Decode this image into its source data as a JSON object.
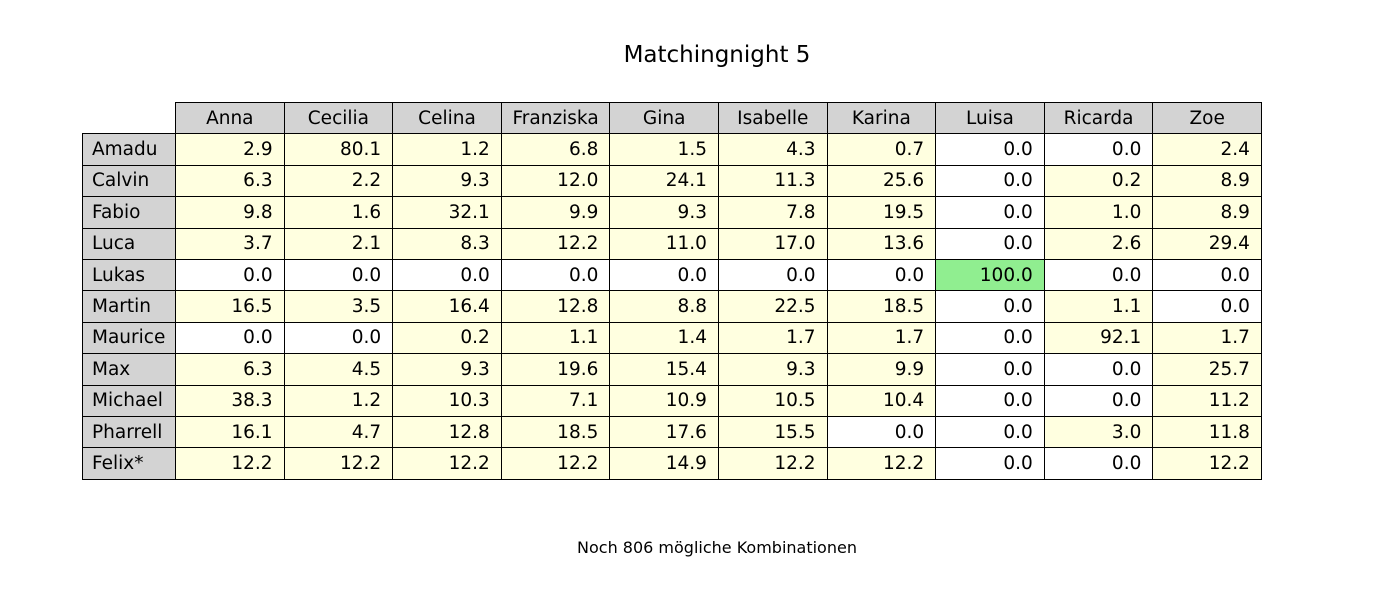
{
  "title": "Matchingnight 5",
  "footer": "Noch 806 mögliche Kombinationen",
  "colors": {
    "header_bg": "#d3d3d3",
    "positive_bg": "#ffffe0",
    "zero_bg": "#ffffff",
    "certain_bg": "#90ee90",
    "border": "#000000"
  },
  "chart_data": {
    "type": "table",
    "title": "Matchingnight 5",
    "columns": [
      "Anna",
      "Cecilia",
      "Celina",
      "Franziska",
      "Gina",
      "Isabelle",
      "Karina",
      "Luisa",
      "Ricarda",
      "Zoe"
    ],
    "rows": [
      {
        "name": "Amadu",
        "values": [
          "2.9",
          "80.1",
          "1.2",
          "6.8",
          "1.5",
          "4.3",
          "0.7",
          "0.0",
          "0.0",
          "2.4"
        ]
      },
      {
        "name": "Calvin",
        "values": [
          "6.3",
          "2.2",
          "9.3",
          "12.0",
          "24.1",
          "11.3",
          "25.6",
          "0.0",
          "0.2",
          "8.9"
        ]
      },
      {
        "name": "Fabio",
        "values": [
          "9.8",
          "1.6",
          "32.1",
          "9.9",
          "9.3",
          "7.8",
          "19.5",
          "0.0",
          "1.0",
          "8.9"
        ]
      },
      {
        "name": "Luca",
        "values": [
          "3.7",
          "2.1",
          "8.3",
          "12.2",
          "11.0",
          "17.0",
          "13.6",
          "0.0",
          "2.6",
          "29.4"
        ]
      },
      {
        "name": "Lukas",
        "values": [
          "0.0",
          "0.0",
          "0.0",
          "0.0",
          "0.0",
          "0.0",
          "0.0",
          "100.0",
          "0.0",
          "0.0"
        ]
      },
      {
        "name": "Martin",
        "values": [
          "16.5",
          "3.5",
          "16.4",
          "12.8",
          "8.8",
          "22.5",
          "18.5",
          "0.0",
          "1.1",
          "0.0"
        ]
      },
      {
        "name": "Maurice",
        "values": [
          "0.0",
          "0.0",
          "0.2",
          "1.1",
          "1.4",
          "1.7",
          "1.7",
          "0.0",
          "92.1",
          "1.7"
        ]
      },
      {
        "name": "Max",
        "values": [
          "6.3",
          "4.5",
          "9.3",
          "19.6",
          "15.4",
          "9.3",
          "9.9",
          "0.0",
          "0.0",
          "25.7"
        ]
      },
      {
        "name": "Michael",
        "values": [
          "38.3",
          "1.2",
          "10.3",
          "7.1",
          "10.9",
          "10.5",
          "10.4",
          "0.0",
          "0.0",
          "11.2"
        ]
      },
      {
        "name": "Pharrell",
        "values": [
          "16.1",
          "4.7",
          "12.8",
          "18.5",
          "17.6",
          "15.5",
          "0.0",
          "0.0",
          "3.0",
          "11.8"
        ]
      },
      {
        "name": "Felix*",
        "values": [
          "12.2",
          "12.2",
          "12.2",
          "12.2",
          "14.9",
          "12.2",
          "12.2",
          "0.0",
          "0.0",
          "12.2"
        ]
      }
    ]
  }
}
